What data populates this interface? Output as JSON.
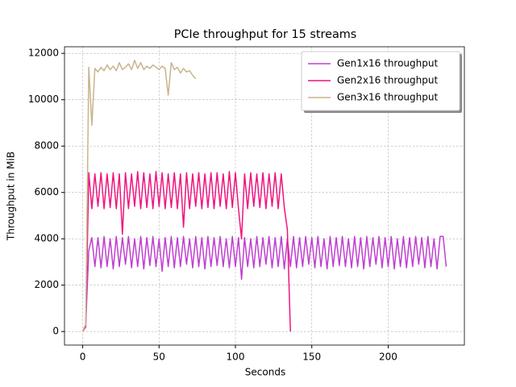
{
  "chart_data": {
    "type": "line",
    "title": "PCIe throughput for 15 streams",
    "xlabel": "Seconds",
    "ylabel": "Throughput in MiB",
    "xlim": [
      -11.9,
      249.9
    ],
    "ylim": [
      -585,
      12285
    ],
    "xticks": [
      0,
      50,
      100,
      150,
      200
    ],
    "yticks": [
      0,
      2000,
      4000,
      6000,
      8000,
      10000,
      12000
    ],
    "grid": true,
    "legend": "upper right",
    "series": [
      {
        "name": "Gen1x16 throughput",
        "color": "#bf3fd0",
        "x": [
          0,
          2,
          4,
          6,
          8,
          10,
          12,
          14,
          16,
          18,
          20,
          22,
          24,
          26,
          28,
          30,
          32,
          34,
          36,
          38,
          40,
          42,
          44,
          46,
          48,
          50,
          52,
          54,
          56,
          58,
          60,
          62,
          64,
          66,
          68,
          70,
          72,
          74,
          76,
          78,
          80,
          82,
          84,
          86,
          88,
          90,
          92,
          94,
          96,
          98,
          100,
          102,
          104,
          106,
          108,
          110,
          112,
          114,
          116,
          118,
          120,
          122,
          124,
          126,
          128,
          130,
          132,
          134,
          136,
          138,
          140,
          142,
          144,
          146,
          148,
          150,
          152,
          154,
          156,
          158,
          160,
          162,
          164,
          166,
          168,
          170,
          172,
          174,
          176,
          178,
          180,
          182,
          184,
          186,
          188,
          190,
          192,
          194,
          196,
          198,
          200,
          202,
          204,
          206,
          208,
          210,
          212,
          214,
          216,
          218,
          220,
          222,
          224,
          226,
          228,
          230,
          232,
          234,
          236,
          238
        ],
        "values": [
          0,
          300,
          3500,
          4050,
          2800,
          4050,
          2750,
          4100,
          2800,
          4000,
          2700,
          4100,
          2800,
          4050,
          2900,
          4100,
          2750,
          4000,
          2800,
          4100,
          2700,
          4050,
          2850,
          4100,
          2800,
          4000,
          2600,
          4050,
          2800,
          4100,
          2750,
          4050,
          2800,
          4100,
          2900,
          4000,
          2750,
          4100,
          2800,
          4050,
          2700,
          4100,
          2800,
          4050,
          2850,
          4100,
          2800,
          4000,
          2750,
          4100,
          2800,
          4050,
          2250,
          4050,
          2800,
          4000,
          2750,
          4100,
          2800,
          4050,
          2900,
          4100,
          2750,
          4050,
          2800,
          4100,
          2700,
          4000,
          2800,
          4100,
          2750,
          4050,
          2800,
          4100,
          2900,
          4050,
          2750,
          4100,
          2800,
          4000,
          2700,
          4100,
          2800,
          4050,
          2850,
          4100,
          2800,
          4000,
          2750,
          4100,
          2800,
          4050,
          2700,
          4100,
          2800,
          4050,
          2900,
          4100,
          2750,
          4050,
          2800,
          4100,
          2700,
          4000,
          2800,
          4100,
          2750,
          4050,
          2800,
          4100,
          2900,
          4050,
          2750,
          4100,
          2800,
          4000,
          2700,
          4100,
          4100,
          2800
        ]
      },
      {
        "name": "Gen2x16 throughput",
        "color": "#f0147f",
        "x": [
          0,
          2,
          4,
          6,
          8,
          10,
          12,
          14,
          16,
          18,
          20,
          22,
          24,
          26,
          28,
          30,
          32,
          34,
          36,
          38,
          40,
          42,
          44,
          46,
          48,
          50,
          52,
          54,
          56,
          58,
          60,
          62,
          64,
          66,
          68,
          70,
          72,
          74,
          76,
          78,
          80,
          82,
          84,
          86,
          88,
          90,
          92,
          94,
          96,
          98,
          100,
          102,
          104,
          106,
          108,
          110,
          112,
          114,
          116,
          118,
          120,
          122,
          124,
          126,
          128,
          130,
          132,
          134,
          136
        ],
        "values": [
          0,
          200,
          6850,
          5300,
          6800,
          5400,
          6850,
          5300,
          6800,
          5350,
          6850,
          5300,
          6800,
          4200,
          6850,
          5300,
          6800,
          5400,
          6900,
          5300,
          6850,
          5350,
          6800,
          5300,
          6900,
          5400,
          6850,
          5300,
          6800,
          5350,
          6850,
          5300,
          6800,
          4500,
          6850,
          5300,
          6800,
          5400,
          6850,
          5300,
          6800,
          5350,
          6850,
          5300,
          6850,
          5400,
          6800,
          5300,
          6900,
          5350,
          6850,
          5300,
          4000,
          6800,
          5300,
          6850,
          5400,
          6800,
          5350,
          6850,
          5300,
          6800,
          5400,
          6850,
          5300,
          6800,
          5350,
          4400,
          0
        ]
      },
      {
        "name": "Gen3x16 throughput",
        "color": "#c8b48c",
        "x": [
          0,
          2,
          4,
          6,
          8,
          10,
          12,
          14,
          16,
          18,
          20,
          22,
          24,
          26,
          28,
          30,
          32,
          34,
          36,
          38,
          40,
          42,
          44,
          46,
          48,
          50,
          52,
          54,
          56,
          58,
          60,
          62,
          64,
          66,
          68,
          70,
          72,
          74
        ],
        "values": [
          0,
          300,
          11400,
          8900,
          11350,
          11200,
          11400,
          11250,
          11500,
          11300,
          11450,
          11250,
          11600,
          11300,
          11400,
          11550,
          11300,
          11700,
          11350,
          11600,
          11300,
          11450,
          11350,
          11500,
          11400,
          11300,
          11450,
          11350,
          10200,
          11600,
          11300,
          11400,
          11150,
          11350,
          11200,
          11250,
          11050,
          10900
        ]
      }
    ]
  }
}
